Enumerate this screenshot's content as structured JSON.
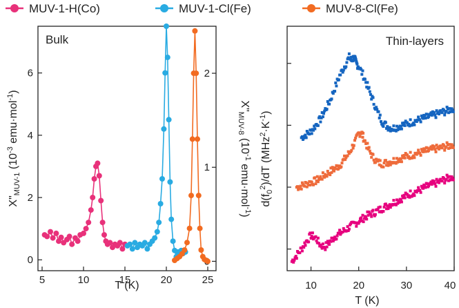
{
  "legend": [
    {
      "name": "MUV-1-H(Co)",
      "color": "#e8317a"
    },
    {
      "name": "MUV-1-Cl(Fe)",
      "color": "#29abe2"
    },
    {
      "name": "MUV-8-Cl(Fe)",
      "color": "#f26b21"
    }
  ],
  "chart_data": [
    {
      "type": "line",
      "panel_label": "Bulk",
      "xlabel": "T (K)",
      "ylabel_left": "X\"MUV-1 (10-3 emu·mol-1)",
      "ylabel_right": "X\"MUV-8 (10-1 emu·mol-1)",
      "xlim": [
        4.5,
        26
      ],
      "xticks": [
        5,
        10,
        15,
        20,
        25
      ],
      "ylim_left": [
        -0.35,
        7.5
      ],
      "yticks_left": [
        0,
        2,
        4,
        6
      ],
      "ylim_right": [
        -0.1,
        2.5
      ],
      "yticks_right": [
        0,
        1,
        2
      ],
      "series": [
        {
          "name": "MUV-1-H(Co)",
          "color": "#e8317a",
          "axis": "left",
          "x": [
            5.3,
            5.6,
            6.0,
            6.3,
            6.7,
            7.0,
            7.3,
            7.6,
            8.0,
            8.3,
            8.6,
            9.0,
            9.3,
            9.6,
            10.0,
            10.3,
            10.6,
            10.9,
            11.1,
            11.3,
            11.5,
            11.7,
            11.9,
            12.1,
            12.3,
            12.5,
            12.7,
            12.9,
            13.2,
            13.5,
            13.8,
            14.1,
            14.4,
            14.7,
            15.0
          ],
          "y": [
            0.8,
            0.75,
            0.9,
            0.7,
            0.85,
            0.6,
            0.72,
            0.55,
            0.65,
            0.75,
            0.5,
            0.7,
            0.6,
            0.8,
            0.85,
            1.0,
            1.2,
            1.6,
            2.0,
            2.6,
            3.0,
            3.1,
            2.7,
            1.9,
            1.2,
            0.8,
            0.6,
            0.5,
            0.55,
            0.4,
            0.5,
            0.45,
            0.55,
            0.35,
            0.5
          ]
        },
        {
          "name": "MUV-1-Cl(Fe)",
          "color": "#29abe2",
          "axis": "left",
          "x": [
            15.3,
            15.6,
            15.9,
            16.2,
            16.5,
            16.8,
            17.1,
            17.4,
            17.7,
            18.0,
            18.3,
            18.6,
            18.9,
            19.1,
            19.3,
            19.5,
            19.7,
            19.85,
            20.0,
            20.15,
            20.3,
            20.45,
            20.6,
            20.8,
            21.0,
            21.2,
            21.4,
            21.6,
            21.8,
            22.0,
            22.3
          ],
          "y": [
            0.45,
            0.5,
            0.35,
            0.55,
            0.4,
            0.5,
            0.45,
            0.55,
            0.35,
            0.5,
            0.6,
            0.7,
            0.9,
            1.2,
            1.8,
            2.6,
            4.2,
            6.0,
            7.5,
            6.5,
            4.5,
            2.5,
            1.3,
            0.6,
            0.3,
            0.1,
            0.25,
            0.15,
            0.3,
            0.2,
            0.25
          ]
        },
        {
          "name": "MUV-8-Cl(Fe)",
          "color": "#f26b21",
          "axis": "right",
          "x": [
            21.0,
            21.3,
            21.6,
            21.9,
            22.2,
            22.5,
            22.8,
            23.0,
            23.15,
            23.3,
            23.45,
            23.6,
            23.75,
            23.9,
            24.05,
            24.2,
            24.4,
            24.6,
            24.8,
            25.0
          ],
          "y": [
            0.01,
            0.03,
            0.05,
            0.08,
            0.12,
            0.2,
            0.35,
            0.7,
            1.3,
            2.0,
            2.45,
            2.0,
            1.3,
            0.7,
            0.35,
            0.12,
            0.05,
            0.02,
            0.01,
            0.0
          ]
        }
      ]
    },
    {
      "type": "scatter",
      "panel_label": "Thin-layers",
      "xlabel": "T (K)",
      "ylabel": "d(f02)/dT (MHz2·K-1)",
      "xlim": [
        5,
        40
      ],
      "xticks": [
        10,
        20,
        30,
        40
      ],
      "ylim": [
        -0.35,
        3.6
      ],
      "series": [
        {
          "name": "MUV-1-Cl(Fe)",
          "color": "#1565c0",
          "x": [
            8,
            9,
            10,
            11,
            12,
            13,
            14,
            15,
            16,
            17,
            18,
            18.5,
            19,
            19.5,
            20,
            21,
            22,
            23,
            24,
            25,
            26,
            27,
            28,
            29,
            30,
            31,
            32,
            33,
            34,
            35,
            36,
            37,
            38,
            39,
            40
          ],
          "y": [
            1.8,
            1.85,
            1.9,
            2.0,
            2.1,
            2.25,
            2.4,
            2.6,
            2.8,
            2.95,
            3.1,
            3.05,
            3.1,
            3.0,
            2.95,
            2.8,
            2.6,
            2.4,
            2.2,
            2.05,
            1.98,
            1.95,
            1.97,
            2.0,
            2.02,
            2.05,
            2.07,
            2.1,
            2.12,
            2.15,
            2.17,
            2.2,
            2.22,
            2.25,
            2.28
          ]
        },
        {
          "name": "MUV-8-Cl(Fe)",
          "color": "#ee6b3b",
          "x": [
            7,
            8,
            9,
            10,
            11,
            12,
            13,
            14,
            15,
            16,
            17,
            18,
            19,
            20,
            20.5,
            21,
            22,
            23,
            24,
            25,
            26,
            27,
            28,
            29,
            30,
            31,
            32,
            33,
            34,
            35,
            36,
            37,
            38,
            39,
            40
          ],
          "y": [
            1.0,
            1.02,
            1.05,
            1.08,
            1.1,
            1.15,
            1.2,
            1.25,
            1.3,
            1.35,
            1.45,
            1.55,
            1.7,
            1.85,
            1.9,
            1.8,
            1.62,
            1.48,
            1.4,
            1.38,
            1.4,
            1.42,
            1.45,
            1.47,
            1.5,
            1.52,
            1.54,
            1.56,
            1.58,
            1.6,
            1.62,
            1.63,
            1.65,
            1.67,
            1.7
          ]
        },
        {
          "name": "MUV-1-H(Co)",
          "color": "#e6007e",
          "x": [
            6,
            7,
            8,
            9,
            10,
            11,
            12,
            13,
            14,
            15,
            16,
            17,
            18,
            19,
            20,
            21,
            22,
            23,
            24,
            25,
            26,
            27,
            28,
            29,
            30,
            31,
            32,
            33,
            34,
            35,
            36,
            37,
            38,
            39,
            40
          ],
          "y": [
            -0.2,
            -0.1,
            0.0,
            0.12,
            0.22,
            0.18,
            0.06,
            0.04,
            0.12,
            0.2,
            0.25,
            0.3,
            0.35,
            0.4,
            0.45,
            0.5,
            0.55,
            0.58,
            0.62,
            0.66,
            0.7,
            0.74,
            0.78,
            0.82,
            0.86,
            0.9,
            0.93,
            0.96,
            1.0,
            1.03,
            1.06,
            1.09,
            1.12,
            1.15,
            1.18
          ]
        }
      ]
    }
  ]
}
